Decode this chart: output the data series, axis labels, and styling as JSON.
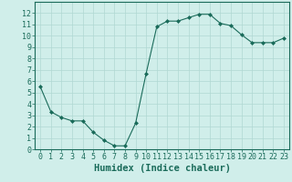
{
  "x": [
    0,
    1,
    2,
    3,
    4,
    5,
    6,
    7,
    8,
    9,
    10,
    11,
    12,
    13,
    14,
    15,
    16,
    17,
    18,
    19,
    20,
    21,
    22,
    23
  ],
  "y": [
    5.5,
    3.3,
    2.8,
    2.5,
    2.5,
    1.5,
    0.8,
    0.3,
    0.3,
    2.3,
    6.7,
    10.8,
    11.3,
    11.3,
    11.6,
    11.9,
    11.9,
    11.1,
    10.9,
    10.1,
    9.4,
    9.4,
    9.4,
    9.8
  ],
  "line_color": "#1a6b5a",
  "marker": "D",
  "marker_size": 2,
  "bg_color": "#d0eeea",
  "grid_color": "#b0d8d3",
  "xlabel": "Humidex (Indice chaleur)",
  "xlim": [
    -0.5,
    23.5
  ],
  "ylim": [
    0,
    13
  ],
  "yticks": [
    0,
    1,
    2,
    3,
    4,
    5,
    6,
    7,
    8,
    9,
    10,
    11,
    12
  ],
  "xticks": [
    0,
    1,
    2,
    3,
    4,
    5,
    6,
    7,
    8,
    9,
    10,
    11,
    12,
    13,
    14,
    15,
    16,
    17,
    18,
    19,
    20,
    21,
    22,
    23
  ],
  "tick_label_fontsize": 6,
  "xlabel_fontsize": 7.5,
  "axis_color": "#1a6b5a"
}
